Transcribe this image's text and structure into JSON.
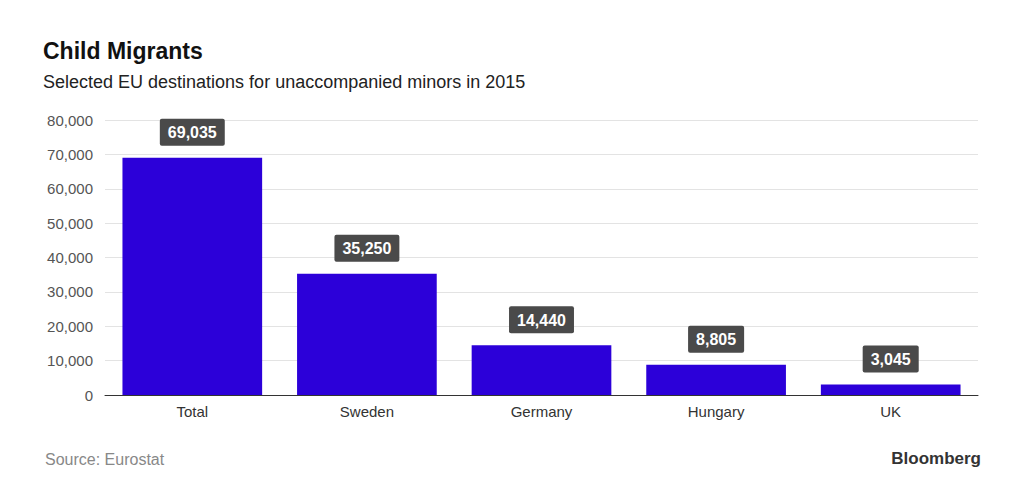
{
  "chart_data": {
    "type": "bar",
    "title": "Child Migrants",
    "subtitle": "Selected EU destinations for unaccompanied minors in 2015",
    "categories": [
      "Total",
      "Sweden",
      "Germany",
      "Hungary",
      "UK"
    ],
    "values": [
      69035,
      35250,
      14440,
      8805,
      3045
    ],
    "value_labels": [
      "69,035",
      "35,250",
      "14,440",
      "8,805",
      "3,045"
    ],
    "color": "#2c00d9",
    "ylim": [
      0,
      80000
    ],
    "yticks": [
      0,
      {
        "value": 10000,
        "label": "10,000"
      },
      {
        "value": 20000,
        "label": "20,000"
      },
      {
        "value": 30000,
        "label": "30,000"
      },
      {
        "value": 40000,
        "label": "40,000"
      },
      {
        "value": 50000,
        "label": "50,000"
      },
      {
        "value": 60000,
        "label": "60,000"
      },
      {
        "value": 70000,
        "label": "70,000"
      },
      {
        "value": 80000,
        "label": "80,000"
      }
    ],
    "grid": true,
    "data_labels": true,
    "source": "Source: Eurostat",
    "publisher": "Bloomberg"
  }
}
